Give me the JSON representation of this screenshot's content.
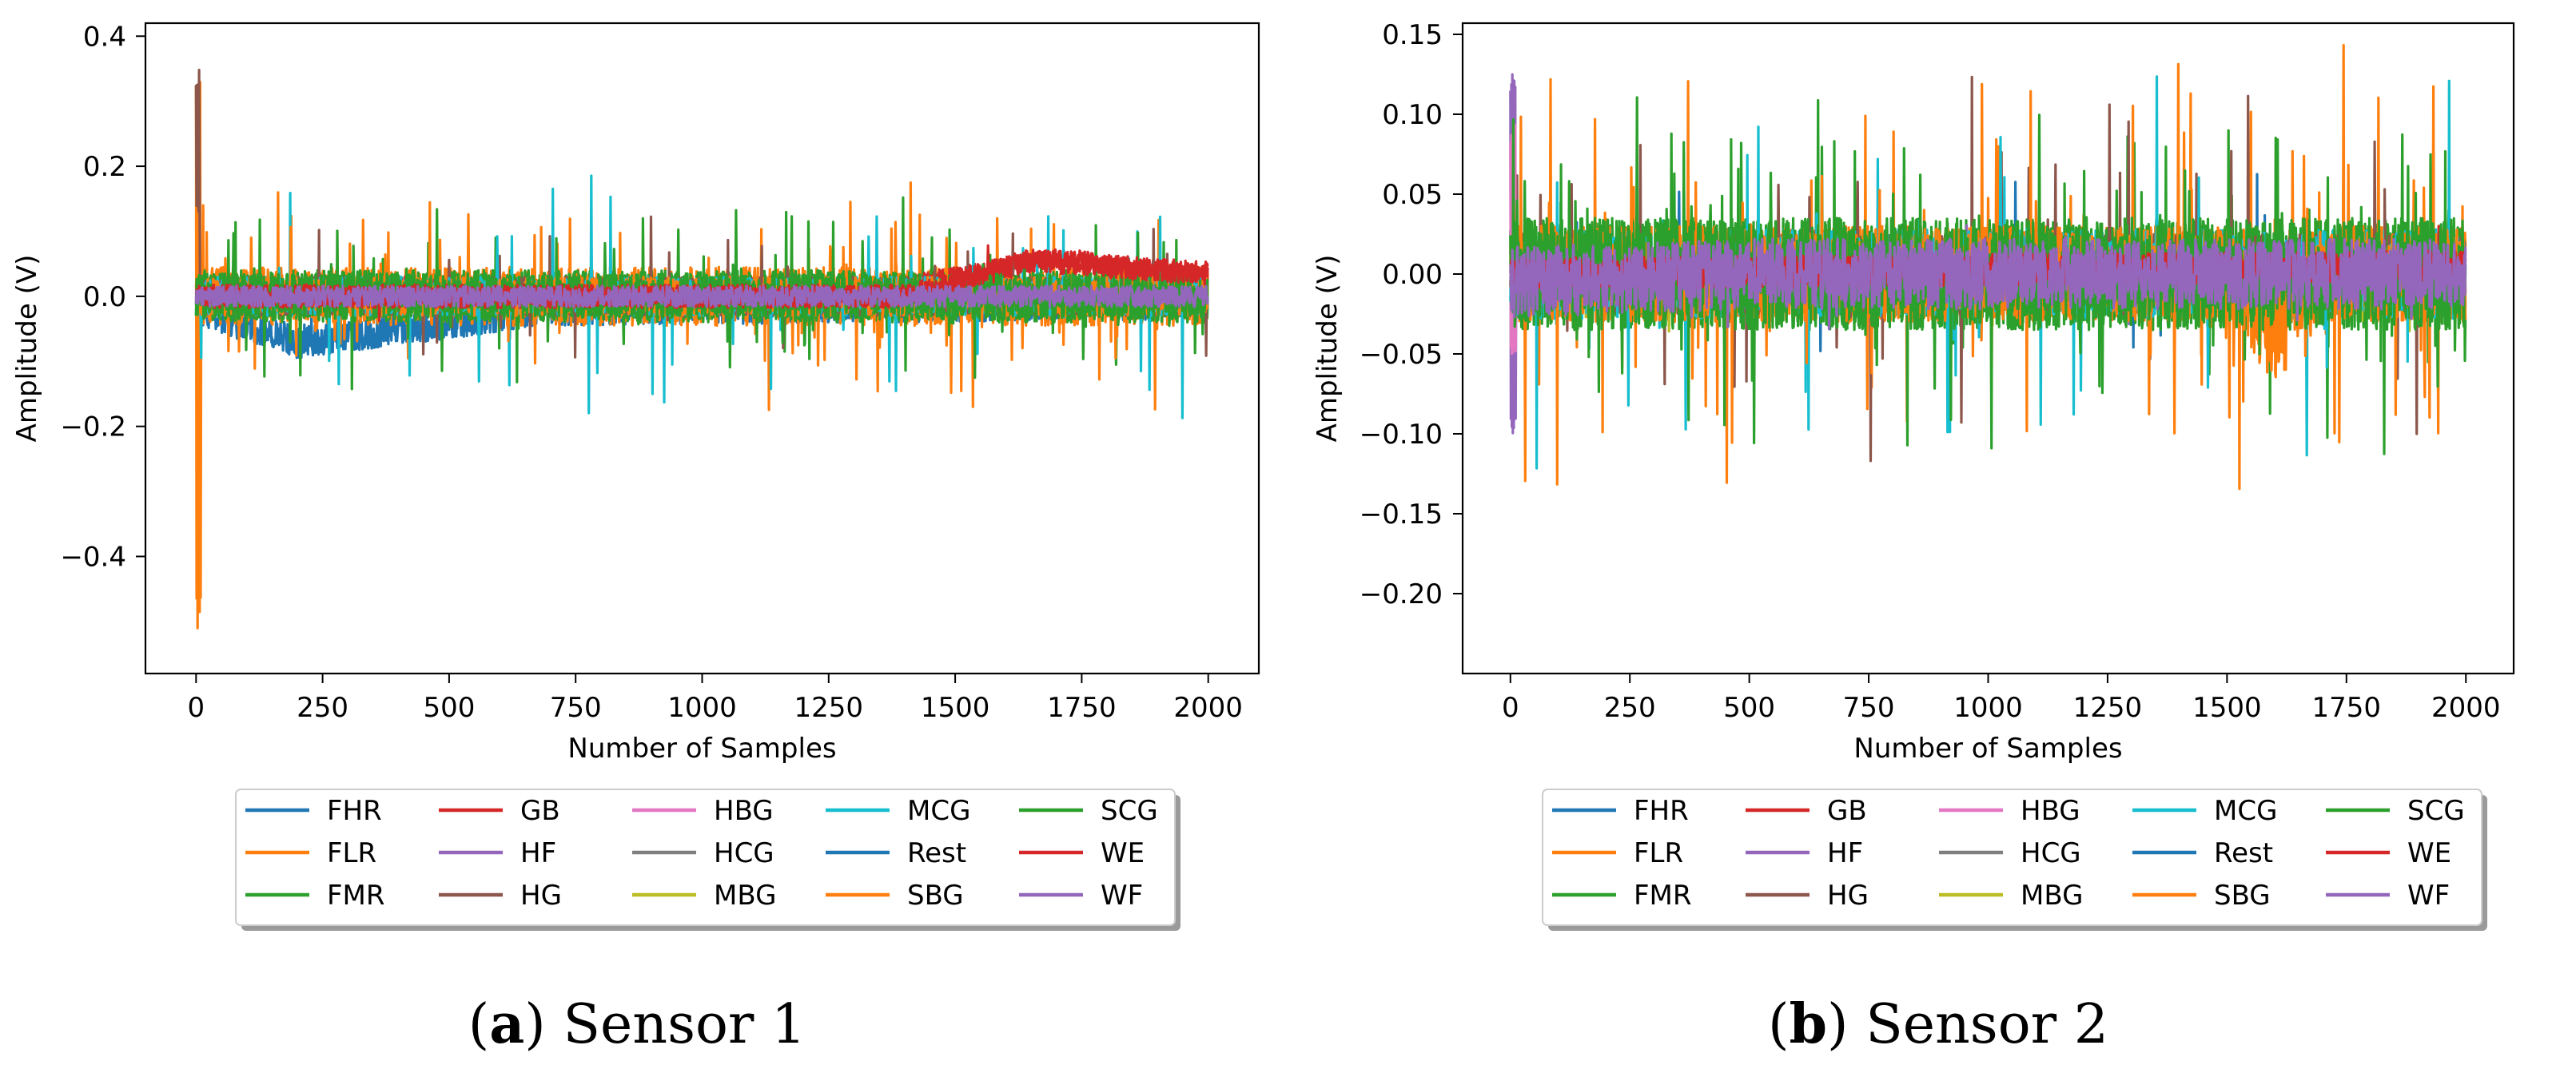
{
  "chart_data": [
    {
      "type": "line",
      "id": "a",
      "caption_letter": "a",
      "caption_title": "Sensor 1",
      "xlabel": "Number of Samples",
      "ylabel": "Amplitude (V)",
      "xlim": [
        -100,
        2100
      ],
      "ylim": [
        -0.58,
        0.42
      ],
      "xticks": [
        0,
        250,
        500,
        750,
        1000,
        1250,
        1500,
        1750,
        2000
      ],
      "xtick_labels": [
        "0",
        "250",
        "500",
        "750",
        "1000",
        "1250",
        "1500",
        "1750",
        "2000"
      ],
      "yticks": [
        -0.4,
        -0.2,
        0.0,
        0.2,
        0.4
      ],
      "ytick_labels": [
        "−0.4",
        "−0.2",
        "0.0",
        "0.2",
        "0.4"
      ],
      "n_samples": 2000,
      "legend": {
        "columns": 5,
        "placement": "below"
      },
      "series": [
        {
          "name": "FHR",
          "color": "#1f77b4",
          "base_amp": 0.025,
          "drift": [
            [
              0,
              -0.02
            ],
            [
              200,
              -0.07
            ],
            [
              700,
              -0.02
            ],
            [
              2000,
              -0.01
            ]
          ],
          "spike_rate": 0.01,
          "spike_amp": 0.04
        },
        {
          "name": "FLR",
          "color": "#ff7f0e",
          "base_amp": 0.045,
          "drift": [
            [
              0,
              0.0
            ],
            [
              2000,
              0.0
            ]
          ],
          "spike_rate": 0.05,
          "spike_amp": 0.14,
          "start_burst": {
            "top": 0.33,
            "bottom": -0.54,
            "length": 10
          }
        },
        {
          "name": "FMR",
          "color": "#2ca02c",
          "base_amp": 0.04,
          "drift": [
            [
              0,
              0.0
            ],
            [
              2000,
              0.0
            ]
          ],
          "spike_rate": 0.03,
          "spike_amp": 0.12
        },
        {
          "name": "GB",
          "color": "#d62728",
          "base_amp": 0.015,
          "drift": [
            [
              0,
              0.0
            ],
            [
              1300,
              0.0
            ],
            [
              1700,
              0.06
            ],
            [
              2000,
              0.03
            ]
          ],
          "spike_rate": 0.005,
          "spike_amp": 0.03
        },
        {
          "name": "HF",
          "color": "#9467bd",
          "base_amp": 0.012,
          "drift": [
            [
              0,
              0.01
            ],
            [
              2000,
              0.0
            ]
          ],
          "spike_rate": 0.005,
          "spike_amp": 0.02
        },
        {
          "name": "HG",
          "color": "#8c564b",
          "base_amp": 0.03,
          "drift": [
            [
              0,
              0.0
            ],
            [
              2000,
              0.0
            ]
          ],
          "spike_rate": 0.02,
          "spike_amp": 0.12,
          "start_burst": {
            "top": 0.38,
            "bottom": 0.15,
            "length": 8
          }
        },
        {
          "name": "HBG",
          "color": "#e377c2",
          "base_amp": 0.01,
          "drift": [
            [
              0,
              0.0
            ],
            [
              2000,
              0.0
            ]
          ],
          "spike_rate": 0.002,
          "spike_amp": 0.02
        },
        {
          "name": "HCG",
          "color": "#7f7f7f",
          "base_amp": 0.01,
          "drift": [
            [
              0,
              0.0
            ],
            [
              2000,
              0.0
            ]
          ],
          "spike_rate": 0.002,
          "spike_amp": 0.02
        },
        {
          "name": "MBG",
          "color": "#bcbd22",
          "base_amp": 0.012,
          "drift": [
            [
              0,
              0.0
            ],
            [
              2000,
              0.0
            ]
          ],
          "spike_rate": 0.002,
          "spike_amp": 0.02
        },
        {
          "name": "MCG",
          "color": "#17becf",
          "base_amp": 0.03,
          "drift": [
            [
              0,
              0.0
            ],
            [
              2000,
              0.0
            ]
          ],
          "spike_rate": 0.02,
          "spike_amp": 0.16
        },
        {
          "name": "Rest",
          "color": "#1f77b4",
          "base_amp": 0.012,
          "drift": [
            [
              0,
              0.0
            ],
            [
              2000,
              0.0
            ]
          ],
          "spike_rate": 0.003,
          "spike_amp": 0.02
        },
        {
          "name": "SBG",
          "color": "#ff7f0e",
          "base_amp": 0.03,
          "drift": [
            [
              0,
              0.0
            ],
            [
              2000,
              0.0
            ]
          ],
          "spike_rate": 0.02,
          "spike_amp": 0.12
        },
        {
          "name": "SCG",
          "color": "#2ca02c",
          "base_amp": 0.035,
          "drift": [
            [
              0,
              0.0
            ],
            [
              2000,
              0.0
            ]
          ],
          "spike_rate": 0.03,
          "spike_amp": 0.13
        },
        {
          "name": "WE",
          "color": "#d62728",
          "base_amp": 0.018,
          "drift": [
            [
              0,
              0.0
            ],
            [
              1400,
              0.0
            ],
            [
              1650,
              0.055
            ],
            [
              2000,
              0.035
            ]
          ],
          "spike_rate": 0.005,
          "spike_amp": 0.03
        },
        {
          "name": "WF",
          "color": "#9467bd",
          "base_amp": 0.016,
          "drift": [
            [
              0,
              0.0
            ],
            [
              2000,
              0.0
            ]
          ],
          "spike_rate": 0.005,
          "spike_amp": 0.02
        }
      ]
    },
    {
      "type": "line",
      "id": "b",
      "caption_letter": "b",
      "caption_title": "Sensor 2",
      "xlabel": "Number of Samples",
      "ylabel": "Amplitude (V)",
      "xlim": [
        -100,
        2100
      ],
      "ylim": [
        -0.25,
        0.157
      ],
      "xticks": [
        0,
        250,
        500,
        750,
        1000,
        1250,
        1500,
        1750,
        2000
      ],
      "xtick_labels": [
        "0",
        "250",
        "500",
        "750",
        "1000",
        "1250",
        "1500",
        "1750",
        "2000"
      ],
      "yticks": [
        -0.2,
        -0.15,
        -0.1,
        -0.05,
        0.0,
        0.05,
        0.1,
        0.15
      ],
      "ytick_labels": [
        "−0.20",
        "−0.15",
        "−0.10",
        "−0.05",
        "0.00",
        "0.05",
        "0.10",
        "0.15"
      ],
      "n_samples": 2000,
      "legend": {
        "columns": 5,
        "placement": "below"
      },
      "series": [
        {
          "name": "FHR",
          "color": "#1f77b4",
          "base_amp": 0.022,
          "drift": [
            [
              0,
              0.0
            ],
            [
              2000,
              0.0
            ]
          ],
          "spike_rate": 0.02,
          "spike_amp": 0.05
        },
        {
          "name": "FLR",
          "color": "#ff7f0e",
          "base_amp": 0.03,
          "drift": [
            [
              0,
              0.0
            ],
            [
              2000,
              0.0
            ]
          ],
          "spike_rate": 0.03,
          "spike_amp": 0.1
        },
        {
          "name": "FMR",
          "color": "#2ca02c",
          "base_amp": 0.035,
          "drift": [
            [
              0,
              0.0
            ],
            [
              2000,
              0.0
            ]
          ],
          "spike_rate": 0.04,
          "spike_amp": 0.09
        },
        {
          "name": "GB",
          "color": "#d62728",
          "base_amp": 0.008,
          "drift": [
            [
              0,
              0.0
            ],
            [
              2000,
              0.005
            ]
          ],
          "spike_rate": 0.005,
          "spike_amp": 0.02
        },
        {
          "name": "HF",
          "color": "#9467bd",
          "base_amp": 0.015,
          "drift": [
            [
              0,
              0.0
            ],
            [
              2000,
              0.0
            ]
          ],
          "spike_rate": 0.005,
          "spike_amp": 0.03,
          "start_burst": {
            "top": 0.125,
            "bottom": -0.1,
            "length": 12
          }
        },
        {
          "name": "HG",
          "color": "#8c564b",
          "base_amp": 0.025,
          "drift": [
            [
              0,
              0.0
            ],
            [
              2000,
              0.0
            ]
          ],
          "spike_rate": 0.02,
          "spike_amp": 0.1
        },
        {
          "name": "HBG",
          "color": "#e377c2",
          "base_amp": 0.01,
          "drift": [
            [
              0,
              0.0
            ],
            [
              2000,
              0.0
            ]
          ],
          "spike_rate": 0.003,
          "spike_amp": 0.02,
          "start_burst": {
            "top": 0.095,
            "bottom": -0.05,
            "length": 12
          }
        },
        {
          "name": "HCG",
          "color": "#7f7f7f",
          "base_amp": 0.01,
          "drift": [
            [
              0,
              0.0
            ],
            [
              2000,
              0.0
            ]
          ],
          "spike_rate": 0.003,
          "spike_amp": 0.02
        },
        {
          "name": "MBG",
          "color": "#bcbd22",
          "base_amp": 0.015,
          "drift": [
            [
              0,
              0.0
            ],
            [
              2000,
              0.0
            ]
          ],
          "spike_rate": 0.005,
          "spike_amp": 0.03
        },
        {
          "name": "MCG",
          "color": "#17becf",
          "base_amp": 0.028,
          "drift": [
            [
              0,
              0.0
            ],
            [
              2000,
              0.0
            ]
          ],
          "spike_rate": 0.025,
          "spike_amp": 0.11
        },
        {
          "name": "Rest",
          "color": "#1f77b4",
          "base_amp": 0.01,
          "drift": [
            [
              0,
              0.0
            ],
            [
              2000,
              0.0
            ]
          ],
          "spike_rate": 0.003,
          "spike_amp": 0.02
        },
        {
          "name": "SBG",
          "color": "#ff7f0e",
          "base_amp": 0.03,
          "drift": [
            [
              0,
              0.0
            ],
            [
              1500,
              0.0
            ],
            [
              1600,
              -0.04
            ],
            [
              1700,
              0.0
            ],
            [
              2000,
              0.0
            ]
          ],
          "spike_rate": 0.03,
          "spike_amp": 0.12
        },
        {
          "name": "SCG",
          "color": "#2ca02c",
          "base_amp": 0.035,
          "drift": [
            [
              0,
              0.0
            ],
            [
              2000,
              0.0
            ]
          ],
          "spike_rate": 0.04,
          "spike_amp": 0.09
        },
        {
          "name": "WE",
          "color": "#d62728",
          "base_amp": 0.01,
          "drift": [
            [
              0,
              0.0
            ],
            [
              2000,
              0.005
            ]
          ],
          "spike_rate": 0.005,
          "spike_amp": 0.02
        },
        {
          "name": "WF",
          "color": "#9467bd",
          "base_amp": 0.022,
          "drift": [
            [
              0,
              -0.005
            ],
            [
              500,
              0.0
            ],
            [
              2000,
              0.0
            ]
          ],
          "spike_rate": 0.01,
          "spike_amp": 0.03
        }
      ]
    }
  ]
}
